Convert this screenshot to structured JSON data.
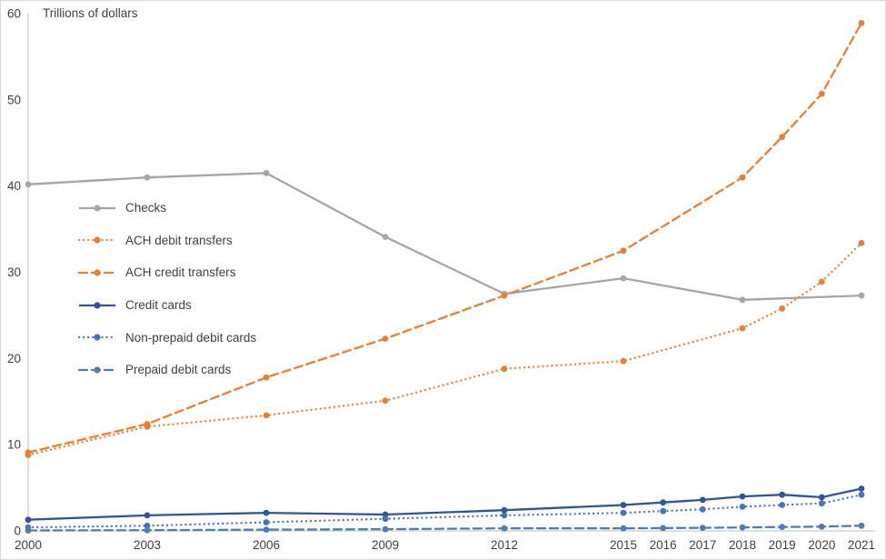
{
  "chart_data": {
    "type": "line",
    "title": "Trillions of dollars",
    "xlabel": "",
    "ylabel": "Trillions of dollars",
    "xlim": [
      2000,
      2021
    ],
    "ylim": [
      0,
      60
    ],
    "xticks": [
      "2000",
      "2003",
      "2006",
      "2009",
      "2012",
      "2015",
      "2016",
      "2017",
      "2018",
      "2019",
      "2020",
      "2021"
    ],
    "xtick_years": [
      2000,
      2003,
      2006,
      2009,
      2012,
      2015,
      2016,
      2017,
      2018,
      2019,
      2020,
      2021
    ],
    "yticks": [
      0,
      10,
      20,
      30,
      40,
      50,
      60
    ],
    "grid": false,
    "legend_position": "inside-upper-left",
    "axis_color": "#bfbfbf",
    "series": [
      {
        "name": "Checks",
        "color": "#a6a6a6",
        "line_style": "solid",
        "x": [
          2000,
          2003,
          2006,
          2009,
          2012,
          2015,
          2018,
          2021
        ],
        "values": [
          40.2,
          41.0,
          41.5,
          34.1,
          27.5,
          29.3,
          26.8,
          27.3
        ]
      },
      {
        "name": "ACH debit transfers",
        "color": "#ed7d31",
        "line_style": "dotted",
        "x": [
          2000,
          2003,
          2006,
          2009,
          2012,
          2015,
          2018,
          2019,
          2020,
          2021
        ],
        "values": [
          8.8,
          12.1,
          13.4,
          15.1,
          18.8,
          19.7,
          23.5,
          25.8,
          28.9,
          33.4
        ]
      },
      {
        "name": "ACH credit transfers",
        "color": "#ed7d31",
        "line_style": "dashed",
        "x": [
          2000,
          2003,
          2006,
          2009,
          2012,
          2015,
          2018,
          2019,
          2020,
          2021
        ],
        "values": [
          9.1,
          12.4,
          17.8,
          22.3,
          27.3,
          32.5,
          41.0,
          45.7,
          50.7,
          58.9
        ]
      },
      {
        "name": "Credit cards",
        "color": "#2f5597",
        "line_style": "solid",
        "x": [
          2000,
          2003,
          2006,
          2009,
          2012,
          2015,
          2016,
          2017,
          2018,
          2019,
          2020,
          2021
        ],
        "values": [
          1.3,
          1.8,
          2.1,
          1.9,
          2.4,
          3.0,
          3.3,
          3.6,
          4.0,
          4.2,
          3.9,
          4.9
        ]
      },
      {
        "name": "Non-prepaid debit cards",
        "color": "#4472c4",
        "line_style": "dotted",
        "x": [
          2000,
          2003,
          2006,
          2009,
          2012,
          2015,
          2016,
          2017,
          2018,
          2019,
          2020,
          2021
        ],
        "values": [
          0.4,
          0.6,
          1.0,
          1.4,
          1.8,
          2.1,
          2.3,
          2.5,
          2.8,
          3.0,
          3.2,
          4.2
        ]
      },
      {
        "name": "Prepaid debit cards",
        "color": "#4a7ebb",
        "line_style": "dashed",
        "x": [
          2000,
          2003,
          2006,
          2009,
          2012,
          2015,
          2016,
          2017,
          2018,
          2019,
          2020,
          2021
        ],
        "values": [
          0.05,
          0.08,
          0.15,
          0.2,
          0.3,
          0.3,
          0.33,
          0.36,
          0.4,
          0.45,
          0.5,
          0.6
        ]
      }
    ]
  }
}
